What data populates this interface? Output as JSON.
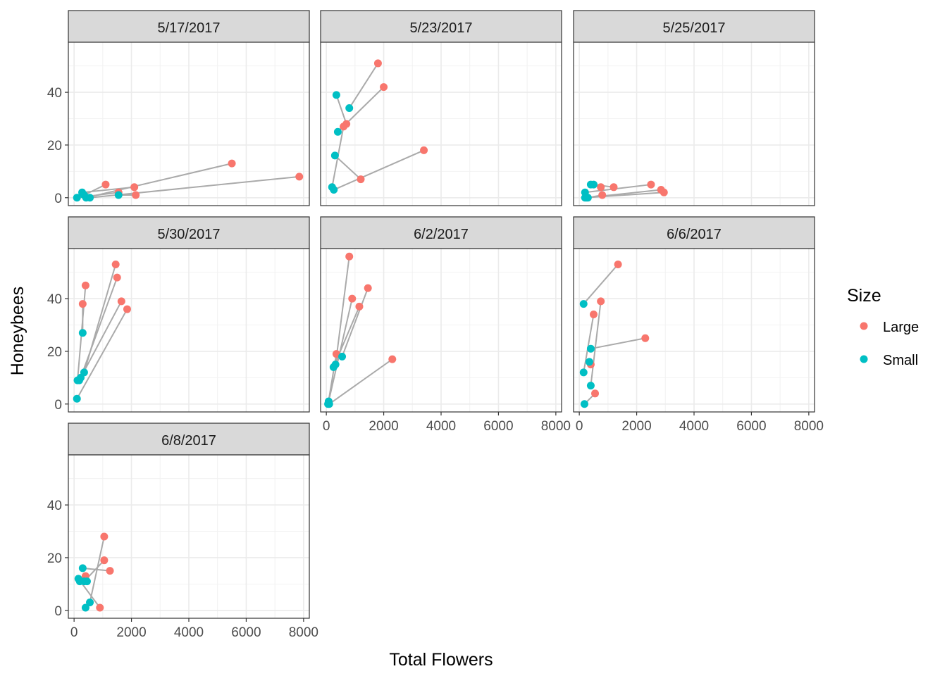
{
  "chart_data": {
    "type": "scatter",
    "xlabel": "Total Flowers",
    "ylabel": "Honeybees",
    "xlim": [
      -200,
      8200
    ],
    "ylim": [
      -3,
      59
    ],
    "x_ticks": [
      0,
      2000,
      4000,
      6000,
      8000
    ],
    "y_ticks": [
      0,
      20,
      40
    ],
    "grid": true,
    "legend": {
      "title": "Size",
      "position": "right",
      "entries": [
        {
          "label": "Large",
          "color": "#F8766D"
        },
        {
          "label": "Small",
          "color": "#00BFC4"
        }
      ]
    },
    "line_color": "#aaaaaa",
    "series_colors": {
      "Large": "#F8766D",
      "Small": "#00BFC4"
    },
    "panels": [
      {
        "title": "5/17/2017",
        "points": [
          {
            "size": "Large",
            "x": 1100,
            "y": 5
          },
          {
            "size": "Large",
            "x": 1550,
            "y": 2
          },
          {
            "size": "Large",
            "x": 2100,
            "y": 4
          },
          {
            "size": "Large",
            "x": 2150,
            "y": 1
          },
          {
            "size": "Large",
            "x": 5500,
            "y": 13
          },
          {
            "size": "Large",
            "x": 7850,
            "y": 8
          },
          {
            "size": "Small",
            "x": 100,
            "y": 0
          },
          {
            "size": "Small",
            "x": 280,
            "y": 2
          },
          {
            "size": "Small",
            "x": 350,
            "y": 1
          },
          {
            "size": "Small",
            "x": 420,
            "y": 0
          },
          {
            "size": "Small",
            "x": 550,
            "y": 0
          },
          {
            "size": "Small",
            "x": 1550,
            "y": 1
          }
        ],
        "lines": [
          [
            [
              100,
              0
            ],
            [
              1550,
              2
            ]
          ],
          [
            [
              280,
              2
            ],
            [
              2100,
              4
            ]
          ],
          [
            [
              350,
              1
            ],
            [
              1100,
              5
            ]
          ],
          [
            [
              420,
              0
            ],
            [
              5500,
              13
            ]
          ],
          [
            [
              550,
              0
            ],
            [
              7850,
              8
            ]
          ],
          [
            [
              1550,
              1
            ],
            [
              2150,
              1
            ]
          ]
        ]
      },
      {
        "title": "5/23/2017",
        "points": [
          {
            "size": "Large",
            "x": 1800,
            "y": 51
          },
          {
            "size": "Large",
            "x": 2000,
            "y": 42
          },
          {
            "size": "Large",
            "x": 700,
            "y": 28
          },
          {
            "size": "Large",
            "x": 600,
            "y": 27
          },
          {
            "size": "Large",
            "x": 3400,
            "y": 18
          },
          {
            "size": "Large",
            "x": 1200,
            "y": 7
          },
          {
            "size": "Small",
            "x": 350,
            "y": 39
          },
          {
            "size": "Small",
            "x": 800,
            "y": 34
          },
          {
            "size": "Small",
            "x": 400,
            "y": 25
          },
          {
            "size": "Small",
            "x": 300,
            "y": 16
          },
          {
            "size": "Small",
            "x": 200,
            "y": 4
          },
          {
            "size": "Small",
            "x": 260,
            "y": 3
          }
        ],
        "lines": [
          [
            [
              350,
              39
            ],
            [
              700,
              28
            ]
          ],
          [
            [
              800,
              34
            ],
            [
              1800,
              51
            ]
          ],
          [
            [
              400,
              25
            ],
            [
              2000,
              42
            ]
          ],
          [
            [
              300,
              16
            ],
            [
              1200,
              7
            ]
          ],
          [
            [
              200,
              4
            ],
            [
              600,
              27
            ]
          ],
          [
            [
              260,
              3
            ],
            [
              3400,
              18
            ]
          ]
        ]
      },
      {
        "title": "5/25/2017",
        "points": [
          {
            "size": "Large",
            "x": 2500,
            "y": 5
          },
          {
            "size": "Large",
            "x": 2850,
            "y": 3
          },
          {
            "size": "Large",
            "x": 2950,
            "y": 2
          },
          {
            "size": "Large",
            "x": 1200,
            "y": 4
          },
          {
            "size": "Large",
            "x": 750,
            "y": 4
          },
          {
            "size": "Large",
            "x": 800,
            "y": 1
          },
          {
            "size": "Small",
            "x": 400,
            "y": 5
          },
          {
            "size": "Small",
            "x": 500,
            "y": 5
          },
          {
            "size": "Small",
            "x": 200,
            "y": 2
          },
          {
            "size": "Small",
            "x": 200,
            "y": 0
          },
          {
            "size": "Small",
            "x": 250,
            "y": 0
          },
          {
            "size": "Small",
            "x": 300,
            "y": 0
          }
        ],
        "lines": [
          [
            [
              400,
              5
            ],
            [
              750,
              4
            ]
          ],
          [
            [
              500,
              5
            ],
            [
              1200,
              4
            ]
          ],
          [
            [
              200,
              2
            ],
            [
              2500,
              5
            ]
          ],
          [
            [
              200,
              0
            ],
            [
              2950,
              2
            ]
          ],
          [
            [
              250,
              0
            ],
            [
              2850,
              3
            ]
          ],
          [
            [
              300,
              0
            ],
            [
              800,
              1
            ]
          ]
        ]
      },
      {
        "title": "5/30/2017",
        "points": [
          {
            "size": "Large",
            "x": 1450,
            "y": 53
          },
          {
            "size": "Large",
            "x": 1500,
            "y": 48
          },
          {
            "size": "Large",
            "x": 400,
            "y": 45
          },
          {
            "size": "Large",
            "x": 1650,
            "y": 39
          },
          {
            "size": "Large",
            "x": 300,
            "y": 38
          },
          {
            "size": "Large",
            "x": 1850,
            "y": 36
          },
          {
            "size": "Small",
            "x": 300,
            "y": 27
          },
          {
            "size": "Small",
            "x": 350,
            "y": 12
          },
          {
            "size": "Small",
            "x": 120,
            "y": 9
          },
          {
            "size": "Small",
            "x": 230,
            "y": 10
          },
          {
            "size": "Small",
            "x": 180,
            "y": 9
          },
          {
            "size": "Small",
            "x": 100,
            "y": 2
          }
        ],
        "lines": [
          [
            [
              300,
              27
            ],
            [
              300,
              38
            ]
          ],
          [
            [
              350,
              12
            ],
            [
              1450,
              53
            ]
          ],
          [
            [
              120,
              9
            ],
            [
              400,
              45
            ]
          ],
          [
            [
              230,
              10
            ],
            [
              1500,
              48
            ]
          ],
          [
            [
              180,
              9
            ],
            [
              1650,
              39
            ]
          ],
          [
            [
              100,
              2
            ],
            [
              1850,
              36
            ]
          ]
        ]
      },
      {
        "title": "6/2/2017",
        "points": [
          {
            "size": "Large",
            "x": 800,
            "y": 56
          },
          {
            "size": "Large",
            "x": 1450,
            "y": 44
          },
          {
            "size": "Large",
            "x": 900,
            "y": 40
          },
          {
            "size": "Large",
            "x": 1150,
            "y": 37
          },
          {
            "size": "Large",
            "x": 350,
            "y": 19
          },
          {
            "size": "Large",
            "x": 2300,
            "y": 17
          },
          {
            "size": "Small",
            "x": 550,
            "y": 18
          },
          {
            "size": "Small",
            "x": 320,
            "y": 15
          },
          {
            "size": "Small",
            "x": 250,
            "y": 14
          },
          {
            "size": "Small",
            "x": 80,
            "y": 1
          },
          {
            "size": "Small",
            "x": 60,
            "y": 0
          },
          {
            "size": "Small",
            "x": 100,
            "y": 0
          }
        ],
        "lines": [
          [
            [
              550,
              18
            ],
            [
              1450,
              44
            ]
          ],
          [
            [
              320,
              15
            ],
            [
              800,
              56
            ]
          ],
          [
            [
              250,
              14
            ],
            [
              1150,
              37
            ]
          ],
          [
            [
              80,
              1
            ],
            [
              900,
              40
            ]
          ],
          [
            [
              60,
              0
            ],
            [
              350,
              19
            ]
          ],
          [
            [
              100,
              0
            ],
            [
              2300,
              17
            ]
          ]
        ]
      },
      {
        "title": "6/6/2017",
        "points": [
          {
            "size": "Large",
            "x": 1350,
            "y": 53
          },
          {
            "size": "Large",
            "x": 750,
            "y": 39
          },
          {
            "size": "Large",
            "x": 500,
            "y": 34
          },
          {
            "size": "Large",
            "x": 2300,
            "y": 25
          },
          {
            "size": "Large",
            "x": 400,
            "y": 15
          },
          {
            "size": "Large",
            "x": 550,
            "y": 4
          },
          {
            "size": "Small",
            "x": 150,
            "y": 38
          },
          {
            "size": "Small",
            "x": 400,
            "y": 21
          },
          {
            "size": "Small",
            "x": 350,
            "y": 16
          },
          {
            "size": "Small",
            "x": 150,
            "y": 12
          },
          {
            "size": "Small",
            "x": 400,
            "y": 7
          },
          {
            "size": "Small",
            "x": 180,
            "y": 0
          }
        ],
        "lines": [
          [
            [
              150,
              38
            ],
            [
              1350,
              53
            ]
          ],
          [
            [
              400,
              21
            ],
            [
              2300,
              25
            ]
          ],
          [
            [
              350,
              16
            ],
            [
              400,
              15
            ]
          ],
          [
            [
              150,
              12
            ],
            [
              500,
              34
            ]
          ],
          [
            [
              400,
              7
            ],
            [
              750,
              39
            ]
          ],
          [
            [
              180,
              0
            ],
            [
              550,
              4
            ]
          ]
        ]
      },
      {
        "title": "6/8/2017",
        "points": [
          {
            "size": "Large",
            "x": 1050,
            "y": 28
          },
          {
            "size": "Large",
            "x": 1050,
            "y": 19
          },
          {
            "size": "Large",
            "x": 1250,
            "y": 15
          },
          {
            "size": "Large",
            "x": 400,
            "y": 13
          },
          {
            "size": "Large",
            "x": 900,
            "y": 1
          },
          {
            "size": "Small",
            "x": 300,
            "y": 16
          },
          {
            "size": "Small",
            "x": 150,
            "y": 12
          },
          {
            "size": "Small",
            "x": 200,
            "y": 11
          },
          {
            "size": "Small",
            "x": 350,
            "y": 11
          },
          {
            "size": "Small",
            "x": 450,
            "y": 11
          },
          {
            "size": "Small",
            "x": 550,
            "y": 3
          },
          {
            "size": "Small",
            "x": 400,
            "y": 1
          }
        ],
        "lines": [
          [
            [
              300,
              16
            ],
            [
              1250,
              15
            ]
          ],
          [
            [
              150,
              12
            ],
            [
              900,
              1
            ]
          ],
          [
            [
              200,
              11
            ],
            [
              400,
              13
            ]
          ],
          [
            [
              350,
              11
            ],
            [
              1050,
              19
            ]
          ],
          [
            [
              450,
              11
            ],
            [
              450,
              11
            ]
          ],
          [
            [
              550,
              3
            ],
            [
              1050,
              28
            ]
          ],
          [
            [
              400,
              1
            ],
            [
              550,
              3
            ]
          ]
        ]
      }
    ]
  }
}
